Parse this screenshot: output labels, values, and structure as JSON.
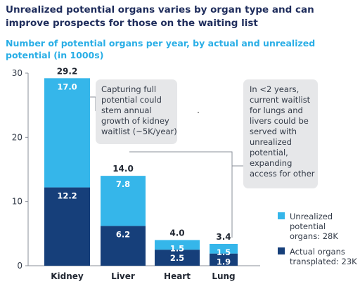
{
  "header": {
    "title": "Unrealized potential organs varies by organ type and can improve prospects for those on the waiting list",
    "subtitle": "Number of potential organs per year, by actual and unrealized potential (in 1000s)"
  },
  "chart_data": {
    "type": "bar",
    "stacked": true,
    "categories": [
      "Kidney",
      "Liver",
      "Heart",
      "Lung"
    ],
    "series": [
      {
        "name": "Actual organs transplated: 23K",
        "values": [
          12.2,
          6.2,
          2.5,
          1.9
        ],
        "color": "#163f7a"
      },
      {
        "name": "Unrealized potential organs: 28K",
        "values": [
          17.0,
          7.8,
          1.5,
          1.5
        ],
        "color": "#35b6ea"
      }
    ],
    "totals": [
      "29.2",
      "14.0",
      "4.0",
      "3.4"
    ],
    "ylim": [
      0,
      30
    ],
    "yticks": [
      0,
      10,
      20,
      30
    ],
    "legend_position": "bottom-right",
    "annotations": [
      "Capturing full potential could stem annual growth of kidney waitlist (~5K/year)",
      "In <2 years, current waitlist for lungs and livers could be served with unrealized potential, expanding access for other"
    ]
  }
}
